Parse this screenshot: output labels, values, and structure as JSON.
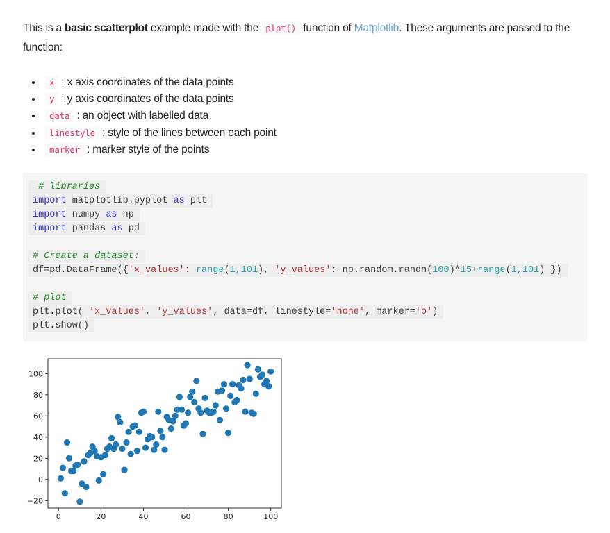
{
  "colors": {
    "inline_code_pink": "#e8336d",
    "link_blue": "#6d9ed6",
    "keyword_blue": "#3333cc",
    "comment_green": "#1f8a1f",
    "string_red": "#b23333",
    "number_teal": "#20a0a8",
    "marker_blue": "#1f77b4",
    "code_panel_bg": "#f6f6f6",
    "code_line_bg": "#eeeeee"
  },
  "intro": {
    "segments": [
      {
        "type": "text",
        "text": "This is a "
      },
      {
        "type": "bold",
        "text": "basic scatterplot"
      },
      {
        "type": "text",
        "text": " example made with the "
      },
      {
        "type": "code",
        "text": "plot()"
      },
      {
        "type": "text",
        "text": " function of "
      },
      {
        "type": "link",
        "text": "Matplotlib"
      },
      {
        "type": "text",
        "text": ". These arguments are passed to the function:"
      }
    ]
  },
  "arguments_list": {
    "items": [
      {
        "code": "x",
        "text": ": x axis coordinates of the data points"
      },
      {
        "code": "y",
        "text": ": y axis coordinates of the data points"
      },
      {
        "code": "data",
        "text": ": an object with labelled data"
      },
      {
        "code": "linestyle",
        "text": ": style of the lines between each point"
      },
      {
        "code": "marker",
        "text": ": marker style of the points"
      }
    ]
  },
  "code_block": {
    "lines": [
      {
        "tokens": [
          {
            "c": "com",
            "t": " # libraries"
          }
        ]
      },
      {
        "tokens": [
          {
            "c": "kw",
            "t": "import"
          },
          {
            "c": "pl",
            "t": " matplotlib.pyplot "
          },
          {
            "c": "kw",
            "t": "as"
          },
          {
            "c": "pl",
            "t": " plt"
          }
        ]
      },
      {
        "tokens": [
          {
            "c": "kw",
            "t": "import"
          },
          {
            "c": "pl",
            "t": " numpy "
          },
          {
            "c": "kw",
            "t": "as"
          },
          {
            "c": "pl",
            "t": " np"
          }
        ]
      },
      {
        "tokens": [
          {
            "c": "kw",
            "t": "import"
          },
          {
            "c": "pl",
            "t": " pandas "
          },
          {
            "c": "kw",
            "t": "as"
          },
          {
            "c": "pl",
            "t": " pd"
          }
        ]
      },
      {
        "blank": true
      },
      {
        "tokens": [
          {
            "c": "com",
            "t": "# Create a dataset:"
          }
        ]
      },
      {
        "tokens": [
          {
            "c": "pl",
            "t": "df=pd.DataFrame({"
          },
          {
            "c": "str",
            "t": "'x_values'"
          },
          {
            "c": "pl",
            "t": ": "
          },
          {
            "c": "bi",
            "t": "range"
          },
          {
            "c": "pl",
            "t": "("
          },
          {
            "c": "num",
            "t": "1,101"
          },
          {
            "c": "pl",
            "t": "), "
          },
          {
            "c": "str",
            "t": "'y_values'"
          },
          {
            "c": "pl",
            "t": ": np.random.randn("
          },
          {
            "c": "num",
            "t": "100"
          },
          {
            "c": "pl",
            "t": ")*"
          },
          {
            "c": "num",
            "t": "15"
          },
          {
            "c": "pl",
            "t": "+"
          },
          {
            "c": "bi",
            "t": "range"
          },
          {
            "c": "pl",
            "t": "("
          },
          {
            "c": "num",
            "t": "1,101"
          },
          {
            "c": "pl",
            "t": ") })"
          }
        ]
      },
      {
        "blank": true
      },
      {
        "tokens": [
          {
            "c": "com",
            "t": "# plot"
          }
        ]
      },
      {
        "tokens": [
          {
            "c": "pl",
            "t": "plt.plot( "
          },
          {
            "c": "str",
            "t": "'x_values'"
          },
          {
            "c": "pl",
            "t": ", "
          },
          {
            "c": "str",
            "t": "'y_values'"
          },
          {
            "c": "pl",
            "t": ", data=df, linestyle="
          },
          {
            "c": "str",
            "t": "'none'"
          },
          {
            "c": "pl",
            "t": ", marker="
          },
          {
            "c": "str",
            "t": "'o'"
          },
          {
            "c": "pl",
            "t": ")"
          }
        ]
      },
      {
        "tokens": [
          {
            "c": "pl",
            "t": "plt.show()"
          }
        ]
      }
    ]
  },
  "chart_data": {
    "type": "scatter",
    "title": "",
    "xlabel": "",
    "ylabel": "",
    "xlim": [
      -5,
      105
    ],
    "ylim": [
      -27,
      114
    ],
    "x_ticks": [
      0,
      20,
      40,
      60,
      80,
      100
    ],
    "y_ticks": [
      -20,
      0,
      20,
      40,
      60,
      80,
      100
    ],
    "grid": false,
    "legend": "none",
    "marker": "o",
    "marker_color": "#1f77b4",
    "points": [
      [
        1,
        1
      ],
      [
        2,
        11
      ],
      [
        3,
        -13
      ],
      [
        4,
        35
      ],
      [
        5,
        20
      ],
      [
        6,
        8
      ],
      [
        7,
        8
      ],
      [
        8,
        13
      ],
      [
        9,
        14
      ],
      [
        10,
        -21
      ],
      [
        11,
        -4
      ],
      [
        12,
        17
      ],
      [
        13,
        -7
      ],
      [
        14,
        23
      ],
      [
        15,
        25
      ],
      [
        16,
        31
      ],
      [
        17,
        27
      ],
      [
        18,
        22
      ],
      [
        19,
        -1
      ],
      [
        20,
        21
      ],
      [
        21,
        5
      ],
      [
        22,
        23
      ],
      [
        23,
        29
      ],
      [
        24,
        31
      ],
      [
        25,
        39
      ],
      [
        26,
        29
      ],
      [
        27,
        33
      ],
      [
        28,
        59
      ],
      [
        29,
        54
      ],
      [
        30,
        29
      ],
      [
        31,
        9
      ],
      [
        32,
        35
      ],
      [
        33,
        45
      ],
      [
        34,
        24
      ],
      [
        35,
        50
      ],
      [
        36,
        51
      ],
      [
        37,
        27
      ],
      [
        38,
        45
      ],
      [
        39,
        63
      ],
      [
        40,
        64
      ],
      [
        41,
        30
      ],
      [
        42,
        38
      ],
      [
        43,
        41
      ],
      [
        44,
        40
      ],
      [
        45,
        28
      ],
      [
        46,
        33
      ],
      [
        47,
        64
      ],
      [
        48,
        46
      ],
      [
        49,
        40
      ],
      [
        50,
        28
      ],
      [
        51,
        59
      ],
      [
        52,
        56
      ],
      [
        53,
        48
      ],
      [
        54,
        55
      ],
      [
        55,
        60
      ],
      [
        56,
        66
      ],
      [
        57,
        78
      ],
      [
        58,
        66
      ],
      [
        59,
        51
      ],
      [
        60,
        53
      ],
      [
        61,
        63
      ],
      [
        62,
        78
      ],
      [
        63,
        83
      ],
      [
        64,
        73
      ],
      [
        65,
        93
      ],
      [
        66,
        67
      ],
      [
        67,
        63
      ],
      [
        68,
        43
      ],
      [
        69,
        77
      ],
      [
        70,
        65
      ],
      [
        71,
        63
      ],
      [
        72,
        63
      ],
      [
        73,
        64
      ],
      [
        74,
        70
      ],
      [
        75,
        83
      ],
      [
        76,
        56
      ],
      [
        77,
        84
      ],
      [
        78,
        90
      ],
      [
        79,
        67
      ],
      [
        80,
        44
      ],
      [
        81,
        79
      ],
      [
        82,
        90
      ],
      [
        83,
        73
      ],
      [
        84,
        75
      ],
      [
        85,
        89
      ],
      [
        86,
        86
      ],
      [
        87,
        94
      ],
      [
        88,
        64
      ],
      [
        89,
        108
      ],
      [
        90,
        95
      ],
      [
        91,
        63
      ],
      [
        92,
        62
      ],
      [
        93,
        81
      ],
      [
        94,
        104
      ],
      [
        95,
        97
      ],
      [
        96,
        99
      ],
      [
        97,
        90
      ],
      [
        98,
        93
      ],
      [
        99,
        88
      ],
      [
        100,
        102
      ]
    ]
  }
}
